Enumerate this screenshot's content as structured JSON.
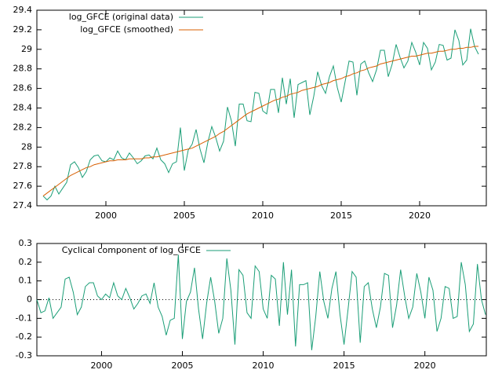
{
  "chart_data": [
    {
      "type": "line",
      "x": [
        1996,
        1996.25,
        1996.5,
        1996.75,
        1997,
        1997.25,
        1997.5,
        1997.75,
        1998,
        1998.25,
        1998.5,
        1998.75,
        1999,
        1999.25,
        1999.5,
        1999.75,
        2000,
        2000.25,
        2000.5,
        2000.75,
        2001,
        2001.25,
        2001.5,
        2001.75,
        2002,
        2002.25,
        2002.5,
        2002.75,
        2003,
        2003.25,
        2003.5,
        2003.75,
        2004,
        2004.25,
        2004.5,
        2004.75,
        2005,
        2005.25,
        2005.5,
        2005.75,
        2006,
        2006.25,
        2006.5,
        2006.75,
        2007,
        2007.25,
        2007.5,
        2007.75,
        2008,
        2008.25,
        2008.5,
        2008.75,
        2009,
        2009.25,
        2009.5,
        2009.75,
        2010,
        2010.25,
        2010.5,
        2010.75,
        2011,
        2011.25,
        2011.5,
        2011.75,
        2012,
        2012.25,
        2012.5,
        2012.75,
        2013,
        2013.25,
        2013.5,
        2013.75,
        2014,
        2014.25,
        2014.5,
        2014.75,
        2015,
        2015.25,
        2015.5,
        2015.75,
        2016,
        2016.25,
        2016.5,
        2016.75,
        2017,
        2017.25,
        2017.5,
        2017.75,
        2018,
        2018.25,
        2018.5,
        2018.75,
        2019,
        2019.25,
        2019.5,
        2019.75,
        2020,
        2020.25,
        2020.5,
        2020.75,
        2021,
        2021.25,
        2021.5,
        2021.75,
        2022,
        2022.25,
        2022.5,
        2022.75,
        2023,
        2023.25,
        2023.5,
        2023.75
      ],
      "series": [
        {
          "name": "log_GFCE (original data)",
          "color": "#1b9e77",
          "values": [
            27.5,
            27.46,
            27.5,
            27.6,
            27.52,
            27.58,
            27.64,
            27.82,
            27.85,
            27.79,
            27.69,
            27.75,
            27.87,
            27.91,
            27.92,
            27.86,
            27.85,
            27.89,
            27.87,
            27.96,
            27.89,
            27.87,
            27.94,
            27.89,
            27.83,
            27.86,
            27.91,
            27.92,
            27.88,
            27.99,
            27.87,
            27.83,
            27.74,
            27.83,
            27.85,
            28.2,
            27.76,
            27.97,
            28.03,
            28.18,
            27.98,
            27.84,
            28.05,
            28.21,
            28.1,
            27.96,
            28.06,
            28.41,
            28.27,
            28.01,
            28.44,
            28.44,
            28.27,
            28.26,
            28.56,
            28.55,
            28.37,
            28.34,
            28.59,
            28.59,
            28.35,
            28.71,
            28.44,
            28.7,
            28.3,
            28.64,
            28.66,
            28.68,
            28.33,
            28.52,
            28.77,
            28.63,
            28.55,
            28.72,
            28.83,
            28.61,
            28.46,
            28.67,
            28.88,
            28.87,
            28.53,
            28.85,
            28.88,
            28.76,
            28.67,
            28.79,
            28.99,
            28.99,
            28.72,
            28.85,
            29.05,
            28.92,
            28.81,
            28.88,
            29.07,
            28.97,
            28.84,
            29.07,
            29.01,
            28.79,
            28.87,
            29.05,
            29.04,
            28.89,
            28.91,
            29.2,
            29.09,
            28.84,
            28.89,
            29.21,
            29.03,
            28.95
          ]
        },
        {
          "name": "log_GFCE (smoothed)",
          "color": "#d95f02",
          "values": [
            27.5,
            27.53,
            27.56,
            27.59,
            27.62,
            27.65,
            27.68,
            27.71,
            27.73,
            27.75,
            27.77,
            27.79,
            27.8,
            27.82,
            27.83,
            27.84,
            27.85,
            27.86,
            27.86,
            27.87,
            27.87,
            27.87,
            27.88,
            27.88,
            27.88,
            27.88,
            27.89,
            27.89,
            27.9,
            27.9,
            27.91,
            27.92,
            27.93,
            27.94,
            27.95,
            27.96,
            27.97,
            27.98,
            27.99,
            28.01,
            28.03,
            28.05,
            28.07,
            28.09,
            28.11,
            28.14,
            28.16,
            28.19,
            28.22,
            28.25,
            28.28,
            28.31,
            28.34,
            28.36,
            28.38,
            28.4,
            28.42,
            28.44,
            28.46,
            28.48,
            28.49,
            28.51,
            28.52,
            28.54,
            28.55,
            28.56,
            28.58,
            28.59,
            28.6,
            28.61,
            28.62,
            28.64,
            28.65,
            28.66,
            28.68,
            28.69,
            28.7,
            28.72,
            28.73,
            28.75,
            28.76,
            28.78,
            28.79,
            28.81,
            28.82,
            28.83,
            28.85,
            28.86,
            28.87,
            28.88,
            28.89,
            28.9,
            28.91,
            28.92,
            28.93,
            28.93,
            28.94,
            28.95,
            28.96,
            28.96,
            28.97,
            28.98,
            28.98,
            28.99,
            29.0,
            29.0,
            29.01,
            29.01,
            29.02,
            29.02,
            29.03,
            29.03
          ]
        }
      ],
      "xlim": [
        1995.6,
        2024.25
      ],
      "xticks": [
        2000,
        2005,
        2010,
        2015,
        2020
      ],
      "ylim": [
        27.4,
        29.4
      ],
      "yticks": [
        27.4,
        27.6,
        27.8,
        28,
        28.2,
        28.4,
        28.6,
        28.8,
        29,
        29.2,
        29.4
      ],
      "legend": "top-left"
    },
    {
      "type": "line",
      "x": [
        1996,
        1996.25,
        1996.5,
        1996.75,
        1997,
        1997.25,
        1997.5,
        1997.75,
        1998,
        1998.25,
        1998.5,
        1998.75,
        1999,
        1999.25,
        1999.5,
        1999.75,
        2000,
        2000.25,
        2000.5,
        2000.75,
        2001,
        2001.25,
        2001.5,
        2001.75,
        2002,
        2002.25,
        2002.5,
        2002.75,
        2003,
        2003.25,
        2003.5,
        2003.75,
        2004,
        2004.25,
        2004.5,
        2004.75,
        2005,
        2005.25,
        2005.5,
        2005.75,
        2006,
        2006.25,
        2006.5,
        2006.75,
        2007,
        2007.25,
        2007.5,
        2007.75,
        2008,
        2008.25,
        2008.5,
        2008.75,
        2009,
        2009.25,
        2009.5,
        2009.75,
        2010,
        2010.25,
        2010.5,
        2010.75,
        2011,
        2011.25,
        2011.5,
        2011.75,
        2012,
        2012.25,
        2012.5,
        2012.75,
        2013,
        2013.25,
        2013.5,
        2013.75,
        2014,
        2014.25,
        2014.5,
        2014.75,
        2015,
        2015.25,
        2015.5,
        2015.75,
        2016,
        2016.25,
        2016.5,
        2016.75,
        2017,
        2017.25,
        2017.5,
        2017.75,
        2018,
        2018.25,
        2018.5,
        2018.75,
        2019,
        2019.25,
        2019.5,
        2019.75,
        2020,
        2020.25,
        2020.5,
        2020.75,
        2021,
        2021.25,
        2021.5,
        2021.75,
        2022,
        2022.25,
        2022.5,
        2022.75,
        2023,
        2023.25,
        2023.5,
        2023.75
      ],
      "series": [
        {
          "name": "Cyclical component of log_GFCE",
          "color": "#1b9e77",
          "values": [
            0,
            -0.07,
            -0.06,
            0.01,
            -0.1,
            -0.07,
            -0.04,
            0.11,
            0.12,
            0.04,
            -0.08,
            -0.04,
            0.07,
            0.09,
            0.09,
            0.02,
            0,
            0.03,
            0.01,
            0.09,
            0.02,
            0,
            0.06,
            0.01,
            -0.05,
            -0.02,
            0.02,
            0.03,
            -0.02,
            0.09,
            -0.04,
            -0.09,
            -0.19,
            -0.11,
            -0.1,
            0.24,
            -0.21,
            -0.01,
            0.04,
            0.17,
            -0.05,
            -0.21,
            -0.02,
            0.12,
            -0.01,
            -0.18,
            -0.1,
            0.22,
            0.05,
            -0.24,
            0.16,
            0.13,
            -0.07,
            -0.1,
            0.18,
            0.15,
            -0.05,
            -0.1,
            0.13,
            0.11,
            -0.14,
            0.2,
            -0.08,
            0.16,
            -0.25,
            0.08,
            0.08,
            0.09,
            -0.27,
            -0.09,
            0.15,
            -0.01,
            -0.1,
            0.06,
            0.15,
            -0.08,
            -0.24,
            -0.05,
            0.15,
            0.12,
            -0.23,
            0.07,
            0.09,
            -0.05,
            -0.15,
            -0.04,
            0.14,
            0.13,
            -0.15,
            -0.03,
            0.16,
            0.02,
            -0.1,
            -0.04,
            0.14,
            0.04,
            -0.1,
            0.12,
            0.05,
            -0.17,
            -0.1,
            0.07,
            0.06,
            -0.1,
            -0.09,
            0.2,
            0.08,
            -0.17,
            -0.13,
            0.19,
            0,
            -0.08
          ]
        }
      ],
      "xlim": [
        1996,
        2023.8
      ],
      "xticks": [
        2000,
        2005,
        2010,
        2015,
        2020
      ],
      "ylim": [
        -0.3,
        0.3
      ],
      "yticks": [
        -0.3,
        -0.2,
        -0.1,
        0,
        0.1,
        0.2,
        0.3
      ],
      "zero_line": true,
      "legend": "top-left"
    }
  ]
}
